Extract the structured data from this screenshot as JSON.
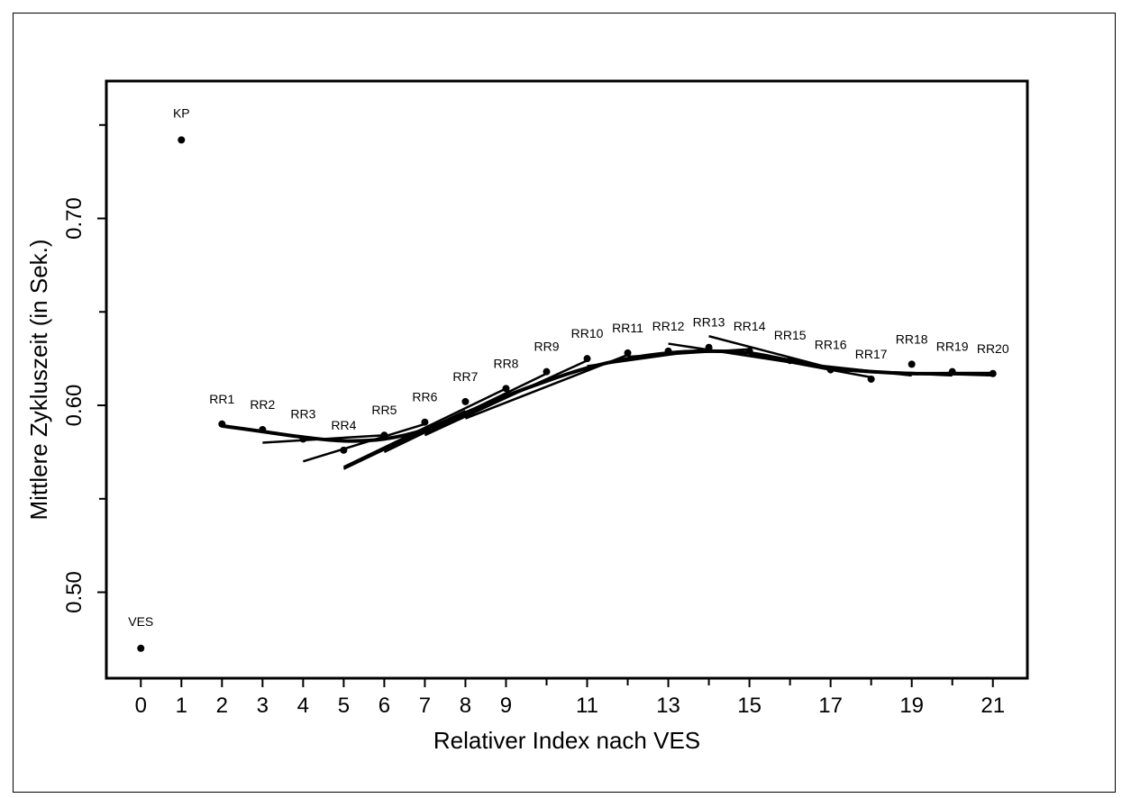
{
  "chart_data": {
    "type": "scatter",
    "xlabel": "Relativer Index nach VES",
    "ylabel": "Mittlere Zykluszeit (in Sek.)",
    "xlim": [
      -0.85,
      21.85
    ],
    "ylim": [
      0.454,
      0.7735
    ],
    "x_ticks": [
      0,
      1,
      2,
      3,
      4,
      5,
      6,
      7,
      8,
      9,
      11,
      13,
      15,
      17,
      19,
      21
    ],
    "x_minor_ticks": [
      10,
      12,
      14,
      16,
      18,
      20
    ],
    "y_ticks": [
      0.5,
      0.6,
      0.7
    ],
    "y_tick_labels": [
      "0.50",
      "0.60",
      "0.70"
    ],
    "y_minor_ticks": [
      0.55,
      0.65,
      0.75
    ],
    "points": [
      {
        "x": 0,
        "y": 0.47,
        "label": "VES"
      },
      {
        "x": 1,
        "y": 0.742,
        "label": "KP"
      },
      {
        "x": 2,
        "y": 0.59,
        "label": "RR1"
      },
      {
        "x": 3,
        "y": 0.587,
        "label": "RR2"
      },
      {
        "x": 4,
        "y": 0.582,
        "label": "RR3"
      },
      {
        "x": 5,
        "y": 0.576,
        "label": "RR4"
      },
      {
        "x": 6,
        "y": 0.584,
        "label": "RR5"
      },
      {
        "x": 7,
        "y": 0.591,
        "label": "RR6"
      },
      {
        "x": 8,
        "y": 0.602,
        "label": "RR7"
      },
      {
        "x": 9,
        "y": 0.609,
        "label": "RR8"
      },
      {
        "x": 10,
        "y": 0.618,
        "label": "RR9"
      },
      {
        "x": 11,
        "y": 0.625,
        "label": "RR10"
      },
      {
        "x": 12,
        "y": 0.628,
        "label": "RR11"
      },
      {
        "x": 13,
        "y": 0.629,
        "label": "RR12"
      },
      {
        "x": 14,
        "y": 0.631,
        "label": "RR13"
      },
      {
        "x": 15,
        "y": 0.629,
        "label": "RR14"
      },
      {
        "x": 16,
        "y": 0.624,
        "label": "RR15"
      },
      {
        "x": 17,
        "y": 0.619,
        "label": "RR16"
      },
      {
        "x": 18,
        "y": 0.614,
        "label": "RR17"
      },
      {
        "x": 19,
        "y": 0.622,
        "label": "RR18"
      },
      {
        "x": 20,
        "y": 0.618,
        "label": "RR19"
      },
      {
        "x": 21,
        "y": 0.617,
        "label": "RR20"
      }
    ],
    "smooth_curve": [
      [
        2,
        0.589
      ],
      [
        3,
        0.586
      ],
      [
        4,
        0.583
      ],
      [
        5,
        0.581
      ],
      [
        6,
        0.582
      ],
      [
        7,
        0.587
      ],
      [
        8,
        0.596
      ],
      [
        9,
        0.605
      ],
      [
        10,
        0.613
      ],
      [
        11,
        0.62
      ],
      [
        12,
        0.625
      ],
      [
        13,
        0.628
      ],
      [
        14,
        0.629
      ],
      [
        15,
        0.628
      ],
      [
        16,
        0.624
      ],
      [
        17,
        0.62
      ],
      [
        18,
        0.618
      ],
      [
        19,
        0.617
      ],
      [
        20,
        0.617
      ],
      [
        21,
        0.617
      ]
    ],
    "local_fits": [
      {
        "from": [
          3,
          0.58
        ],
        "to": [
          6,
          0.584
        ]
      },
      {
        "from": [
          4,
          0.57
        ],
        "to": [
          7,
          0.59
        ]
      },
      {
        "from": [
          5,
          0.566
        ],
        "to": [
          8,
          0.597
        ]
      },
      {
        "from": [
          5,
          0.567
        ],
        "to": [
          9,
          0.609
        ]
      },
      {
        "from": [
          6,
          0.575
        ],
        "to": [
          10,
          0.617
        ]
      },
      {
        "from": [
          7,
          0.584
        ],
        "to": [
          11,
          0.624
        ]
      },
      {
        "from": [
          7,
          0.585
        ],
        "to": [
          10,
          0.614
        ]
      },
      {
        "from": [
          8,
          0.593
        ],
        "to": [
          12,
          0.627
        ]
      },
      {
        "from": [
          11,
          0.621
        ],
        "to": [
          14,
          0.63
        ]
      },
      {
        "from": [
          12,
          0.626
        ],
        "to": [
          15,
          0.63
        ]
      },
      {
        "from": [
          13,
          0.633
        ],
        "to": [
          16,
          0.623
        ]
      },
      {
        "from": [
          14,
          0.637
        ],
        "to": [
          17,
          0.62
        ]
      },
      {
        "from": [
          15,
          0.627
        ],
        "to": [
          18,
          0.615
        ]
      },
      {
        "from": [
          16,
          0.623
        ],
        "to": [
          19,
          0.616
        ]
      },
      {
        "from": [
          17,
          0.619
        ],
        "to": [
          20,
          0.616
        ]
      },
      {
        "from": [
          18,
          0.618
        ],
        "to": [
          21,
          0.616
        ]
      }
    ],
    "grid": false,
    "legend": "none",
    "color": "#000000"
  }
}
